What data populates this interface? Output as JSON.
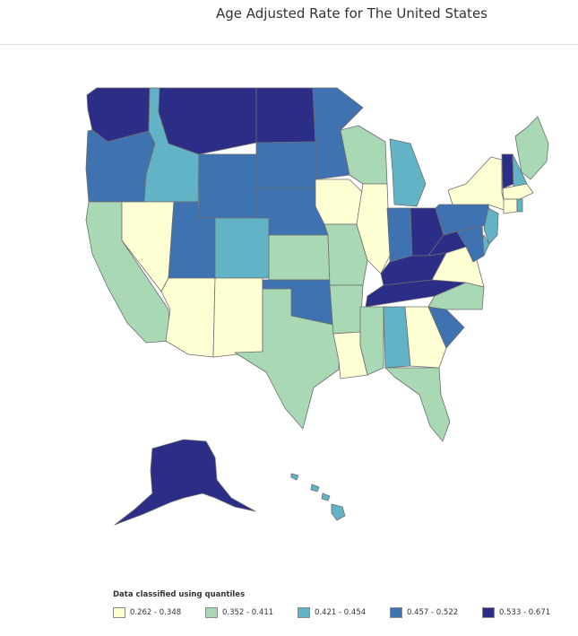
{
  "page": {
    "title": "Age Adjusted Rate for The United States"
  },
  "colors": {
    "class_1": "#ffffd4",
    "class_2": "#a9d8b5",
    "class_3": "#62b3c6",
    "class_4": "#3f72b1",
    "class_5": "#2b2d86",
    "border": "#6d6d6d"
  },
  "legend": {
    "title": "Data classified using quantiles",
    "items": [
      {
        "label": "0.262 - 0.348",
        "class": "class_1"
      },
      {
        "label": "0.352 - 0.411",
        "class": "class_2"
      },
      {
        "label": "0.421 - 0.454",
        "class": "class_3"
      },
      {
        "label": "0.457 - 0.522",
        "class": "class_4"
      },
      {
        "label": "0.533 - 0.671",
        "class": "class_5"
      }
    ]
  },
  "states": [
    {
      "name": "Washington",
      "class": "class_5"
    },
    {
      "name": "Oregon",
      "class": "class_4"
    },
    {
      "name": "California",
      "class": "class_2"
    },
    {
      "name": "Idaho",
      "class": "class_3"
    },
    {
      "name": "Nevada",
      "class": "class_1"
    },
    {
      "name": "Montana",
      "class": "class_5"
    },
    {
      "name": "Wyoming",
      "class": "class_4"
    },
    {
      "name": "Utah",
      "class": "class_4"
    },
    {
      "name": "Arizona",
      "class": "class_1"
    },
    {
      "name": "Colorado",
      "class": "class_3"
    },
    {
      "name": "New Mexico",
      "class": "class_1"
    },
    {
      "name": "North Dakota",
      "class": "class_5"
    },
    {
      "name": "South Dakota",
      "class": "class_4"
    },
    {
      "name": "Nebraska",
      "class": "class_4"
    },
    {
      "name": "Kansas",
      "class": "class_2"
    },
    {
      "name": "Oklahoma",
      "class": "class_4"
    },
    {
      "name": "Texas",
      "class": "class_2"
    },
    {
      "name": "Minnesota",
      "class": "class_4"
    },
    {
      "name": "Iowa",
      "class": "class_1"
    },
    {
      "name": "Missouri",
      "class": "class_2"
    },
    {
      "name": "Arkansas",
      "class": "class_2"
    },
    {
      "name": "Louisiana",
      "class": "class_1"
    },
    {
      "name": "Wisconsin",
      "class": "class_2"
    },
    {
      "name": "Illinois",
      "class": "class_1"
    },
    {
      "name": "Michigan",
      "class": "class_3"
    },
    {
      "name": "Indiana",
      "class": "class_4"
    },
    {
      "name": "Ohio",
      "class": "class_5"
    },
    {
      "name": "Kentucky",
      "class": "class_5"
    },
    {
      "name": "Tennessee",
      "class": "class_5"
    },
    {
      "name": "Mississippi",
      "class": "class_2"
    },
    {
      "name": "Alabama",
      "class": "class_3"
    },
    {
      "name": "Georgia",
      "class": "class_1"
    },
    {
      "name": "Florida",
      "class": "class_2"
    },
    {
      "name": "South Carolina",
      "class": "class_4"
    },
    {
      "name": "North Carolina",
      "class": "class_2"
    },
    {
      "name": "Virginia",
      "class": "class_1"
    },
    {
      "name": "West Virginia",
      "class": "class_5"
    },
    {
      "name": "Pennsylvania",
      "class": "class_4"
    },
    {
      "name": "New York",
      "class": "class_1"
    },
    {
      "name": "Vermont",
      "class": "class_5"
    },
    {
      "name": "New Hampshire",
      "class": "class_3"
    },
    {
      "name": "Maine",
      "class": "class_2"
    },
    {
      "name": "Massachusetts",
      "class": "class_1"
    },
    {
      "name": "Connecticut",
      "class": "class_1"
    },
    {
      "name": "Rhode Island",
      "class": "class_3"
    },
    {
      "name": "New Jersey",
      "class": "class_3"
    },
    {
      "name": "Delaware",
      "class": "class_3"
    },
    {
      "name": "Maryland",
      "class": "class_4"
    },
    {
      "name": "Alaska",
      "class": "class_5"
    },
    {
      "name": "Hawaii",
      "class": "class_3"
    }
  ]
}
